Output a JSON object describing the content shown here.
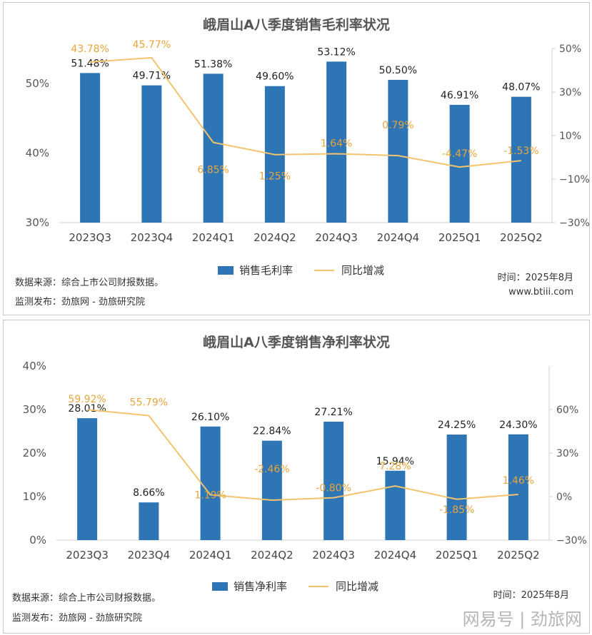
{
  "chart_data": [
    {
      "type": "bar",
      "title": "峨眉山A八季度销售毛利率状况",
      "categories": [
        "2023Q3",
        "2023Q4",
        "2024Q1",
        "2024Q2",
        "2024Q3",
        "2024Q4",
        "2025Q1",
        "2025Q2"
      ],
      "series": [
        {
          "name": "销售毛利率",
          "type": "bar",
          "axis": "left",
          "color": "#2e75b6",
          "values": [
            51.48,
            49.71,
            51.38,
            49.6,
            53.12,
            50.5,
            46.91,
            48.07
          ],
          "labels": [
            "51.48%",
            "49.71%",
            "51.38%",
            "49.60%",
            "53.12%",
            "50.50%",
            "46.91%",
            "48.07%"
          ]
        },
        {
          "name": "同比增减",
          "type": "line",
          "axis": "right",
          "color": "#f4c36d",
          "values": [
            43.78,
            45.77,
            6.85,
            1.25,
            1.64,
            0.79,
            -4.47,
            -1.53
          ],
          "labels": [
            "43.78%",
            "45.77%",
            "6.85%",
            "1.25%",
            "1.64%",
            "0.79%",
            "-4.47%",
            "-1.53%"
          ]
        }
      ],
      "ylim_left": [
        30,
        55
      ],
      "yticks_left": [
        "30%",
        "40%",
        "50%"
      ],
      "ylim_right": [
        -30,
        50
      ],
      "yticks_right": [
        "-30%",
        "-10%",
        "10%",
        "30%",
        "50%"
      ],
      "legend": "bottom-center",
      "grid": false
    },
    {
      "type": "bar",
      "title": "峨眉山A八季度销售净利率状况",
      "categories": [
        "2023Q3",
        "2023Q4",
        "2024Q1",
        "2024Q2",
        "2024Q3",
        "2024Q4",
        "2025Q1",
        "2025Q2"
      ],
      "series": [
        {
          "name": "销售净利率",
          "type": "bar",
          "axis": "left",
          "color": "#2e75b6",
          "values": [
            28.01,
            8.66,
            26.1,
            22.84,
            27.21,
            15.94,
            24.25,
            24.3
          ],
          "labels": [
            "28.01%",
            "8.66%",
            "26.10%",
            "22.84%",
            "27.21%",
            "15.94%",
            "24.25%",
            "24.30%"
          ]
        },
        {
          "name": "同比增减",
          "type": "line",
          "axis": "right",
          "color": "#f4c36d",
          "values": [
            59.92,
            55.79,
            1.19,
            -2.46,
            -0.8,
            7.28,
            -1.85,
            1.46
          ],
          "labels": [
            "59.92%",
            "55.79%",
            "1.19%",
            "-2.46%",
            "-0.80%",
            "7.28%",
            "-1.85%",
            "1.46%"
          ]
        }
      ],
      "ylim_left": [
        0,
        40
      ],
      "yticks_left": [
        "0%",
        "10%",
        "20%",
        "30%",
        "40%"
      ],
      "ylim_right": [
        -30,
        90
      ],
      "yticks_right": [
        "-30%",
        "0%",
        "30%",
        "60%"
      ],
      "legend": "bottom-center",
      "grid": false
    }
  ],
  "panels": [
    {
      "title": "峨眉山A八季度销售毛利率状况",
      "legend_bar": "销售毛利率",
      "legend_line": "同比增减",
      "source": "数据来源：综合上市公司财报数据。",
      "publisher": "监测发布：劲旅网 - 劲旅研究院",
      "time": "时间：2025年8月",
      "site": "www.btiii.com"
    },
    {
      "title": "峨眉山A八季度销售净利率状况",
      "legend_bar": "销售净利率",
      "legend_line": "同比增减",
      "source": "数据来源：综合上市公司财报数据。",
      "publisher": "监测发布：劲旅网 - 劲旅研究院",
      "time": "时间：2025年8月"
    }
  ],
  "watermark": "网易号 | 劲旅网"
}
